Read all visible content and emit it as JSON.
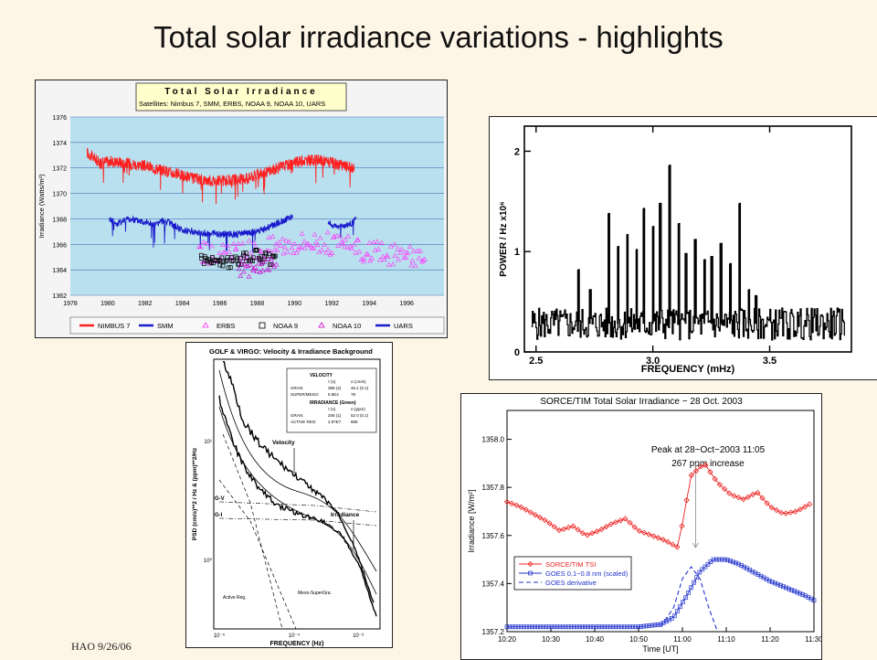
{
  "slide": {
    "title": "Total solar irradiance variations - highlights",
    "footer": "HAO 9/26/06"
  },
  "chart_data": [
    {
      "id": "tsi-composite",
      "type": "line",
      "title": "Total Solar Irradiance",
      "subtitle": "Satellites: Nimbus 7, SMM, ERBS, NOAA 9, NOAA 10, UARS",
      "ylabel": "Irradiance (Watts/m²)",
      "xlabel": "",
      "xlim": [
        1978,
        1998
      ],
      "ylim": [
        1362,
        1376
      ],
      "x_ticks": [
        "1978",
        "1980",
        "1982",
        "1984",
        "1986",
        "1988",
        "1990",
        "1992",
        "1994",
        "1996"
      ],
      "y_ticks": [
        "1362",
        "1364",
        "1366",
        "1368",
        "1370",
        "1372",
        "1374",
        "1376"
      ],
      "grid": true,
      "legend_position": "bottom",
      "colors": {
        "nimbus7": "#ff2020",
        "smm": "#1a1acc",
        "erbs": "#ff33ff",
        "noaa9": "#000000",
        "noaa10": "#cc00cc",
        "uars": "#1a1acc"
      },
      "series": [
        {
          "name": "NIMBUS 7",
          "x": [
            1978.9,
            1979.5,
            1980.5,
            1981.5,
            1982.5,
            1983.5,
            1984.5,
            1985.5,
            1986.5,
            1987.5,
            1988.5,
            1989.5,
            1990.5,
            1991.5,
            1992.5,
            1993.2
          ],
          "y": [
            1373.2,
            1372.5,
            1372.5,
            1372.3,
            1372.0,
            1371.6,
            1371.2,
            1371.0,
            1371.0,
            1371.2,
            1371.7,
            1372.2,
            1372.6,
            1372.6,
            1372.2,
            1372.0
          ]
        },
        {
          "name": "SMM",
          "x": [
            1980.1,
            1980.5,
            1981.0,
            1981.5,
            1982.0,
            1982.5,
            1983.0,
            1983.5,
            1984.0,
            1985.0,
            1986.0,
            1987.0,
            1988.0,
            1989.0,
            1989.9
          ],
          "y": [
            1368.0,
            1367.6,
            1368.0,
            1367.9,
            1367.8,
            1367.5,
            1367.9,
            1367.5,
            1367.1,
            1366.9,
            1366.8,
            1366.8,
            1367.0,
            1367.6,
            1368.2
          ]
        },
        {
          "name": "ERBS",
          "x": [
            1984.9,
            1986.0,
            1987.0,
            1988.0,
            1989.0,
            1990.0,
            1991.0,
            1992.0,
            1993.0,
            1994.0,
            1995.0,
            1996.0,
            1997.0
          ],
          "y": [
            1365.4,
            1365.2,
            1365.3,
            1365.6,
            1366.0,
            1366.2,
            1366.3,
            1366.0,
            1365.7,
            1365.4,
            1365.2,
            1365.1,
            1365.2
          ]
        },
        {
          "name": "NOAA 9",
          "x": [
            1985.0,
            1985.5,
            1986.0,
            1986.5,
            1987.0,
            1987.5,
            1988.0,
            1988.5,
            1989.0
          ],
          "y": [
            1365.0,
            1364.7,
            1364.5,
            1364.6,
            1364.8,
            1365.0,
            1365.2,
            1364.9,
            1364.7
          ]
        },
        {
          "name": "NOAA 10",
          "x": [
            1987.0,
            1987.5,
            1988.0,
            1988.5,
            1989.0
          ],
          "y": [
            1364.0,
            1363.9,
            1364.2,
            1364.4,
            1364.6
          ]
        },
        {
          "name": "UARS",
          "x": [
            1991.8,
            1992.0,
            1992.5,
            1993.0,
            1993.3
          ],
          "y": [
            1367.8,
            1367.5,
            1367.4,
            1367.6,
            1368.0
          ]
        }
      ]
    },
    {
      "id": "power-spectrum",
      "type": "line",
      "xlabel": "FREQUENCY (mHz)",
      "ylabel": "POWER / Hz x10⁶",
      "xlim": [
        2.45,
        3.85
      ],
      "ylim": [
        0,
        2.25
      ],
      "x_ticks": [
        "2.5",
        "3.0",
        "3.5"
      ],
      "y_ticks": [
        "0",
        "1",
        "2"
      ],
      "peaks": [
        {
          "x": 2.68,
          "y": 0.82
        },
        {
          "x": 2.73,
          "y": 0.62
        },
        {
          "x": 2.81,
          "y": 1.38
        },
        {
          "x": 2.85,
          "y": 1.05
        },
        {
          "x": 2.89,
          "y": 1.17
        },
        {
          "x": 2.93,
          "y": 1.02
        },
        {
          "x": 2.96,
          "y": 1.43
        },
        {
          "x": 3.0,
          "y": 1.25
        },
        {
          "x": 3.03,
          "y": 1.48
        },
        {
          "x": 3.07,
          "y": 1.86
        },
        {
          "x": 3.11,
          "y": 1.28
        },
        {
          "x": 3.14,
          "y": 0.98
        },
        {
          "x": 3.18,
          "y": 1.12
        },
        {
          "x": 3.22,
          "y": 0.92
        },
        {
          "x": 3.25,
          "y": 0.95
        },
        {
          "x": 3.29,
          "y": 1.08
        },
        {
          "x": 3.33,
          "y": 0.88
        },
        {
          "x": 3.37,
          "y": 1.48
        },
        {
          "x": 3.41,
          "y": 0.62
        },
        {
          "x": 3.44,
          "y": 0.56
        }
      ],
      "noise_level": 0.28
    },
    {
      "id": "golf-virgo-psd",
      "type": "line",
      "title": "GOLF & VIRGO: Velocity & Irradiance Background",
      "xlabel": "FREQUENCY (Hz)",
      "ylabel": "PSD (cm/s)**2 / Hz & (ppm)**2/Hz",
      "x_ticks": [
        "10⁻⁵",
        "10⁻⁴",
        "10⁻³"
      ],
      "y_ticks": [
        "10¹",
        "10⁰"
      ],
      "annotations": [
        "Velocity",
        "Irradiance",
        "G-V",
        "G-I",
        "Active Reg.",
        "Meso-SuperGra."
      ],
      "table": {
        "sections": [
          {
            "heading": "VELOCITY",
            "columns": [
              "τ (s)",
              "σ (cm/s)"
            ],
            "rows": [
              [
                "GRAN:",
                "389 (4)",
                "46.1 (0.1)"
              ],
              [
                "SUPER/MESO:",
                "5.6E4",
                "78"
              ]
            ]
          },
          {
            "heading": "IRRADIANCE (Green)",
            "columns": [
              "τ (s)",
              "σ (ppm)"
            ],
            "rows": [
              [
                "GRAN:",
                "206 (1)",
                "52 0 (0.1)"
              ],
              [
                "ACTIVE REG:",
                "2.87E7",
                "865"
              ]
            ]
          }
        ]
      }
    },
    {
      "id": "sorce-tim",
      "type": "line",
      "title": "SORCE/TIM Total Solar Irradiance − 28 Oct. 2003",
      "xlabel": "Time [UT]",
      "ylabel": "Irradiance [W/m²]",
      "annotation": [
        "Peak at 28−Oct−2003 11:05",
        "267 ppm increase"
      ],
      "x_ticks": [
        "10:20",
        "10:30",
        "10:40",
        "10:50",
        "11:00",
        "11:10",
        "11:20",
        "11:30"
      ],
      "y_ticks": [
        "1357.2",
        "1357.4",
        "1357.6",
        "1357.8",
        "1358.0"
      ],
      "xlim": [
        620,
        690
      ],
      "ylim": [
        1357.2,
        1358.12
      ],
      "colors": {
        "tsi": "#ee2222",
        "goes": "#2233cc",
        "derivative": "#2233cc"
      },
      "legend_position": "bottom-left",
      "series": [
        {
          "name": "SORCE/TIM TSI",
          "x": [
            620,
            623,
            626,
            629,
            632,
            635,
            638,
            641,
            644,
            647,
            650,
            653,
            656,
            659,
            662,
            665,
            668,
            671,
            674,
            677,
            680,
            683,
            686,
            689
          ],
          "y": [
            1357.74,
            1357.72,
            1357.69,
            1357.66,
            1357.62,
            1357.64,
            1357.6,
            1357.62,
            1357.65,
            1357.67,
            1357.62,
            1357.6,
            1357.58,
            1357.55,
            1357.85,
            1357.9,
            1357.82,
            1357.77,
            1357.75,
            1357.78,
            1357.72,
            1357.69,
            1357.7,
            1357.73
          ]
        },
        {
          "name": "GOES 0.1−0.8 nm (scaled)",
          "x": [
            620,
            630,
            640,
            650,
            655,
            658,
            661,
            664,
            667,
            670,
            673,
            676,
            680,
            684,
            688,
            690
          ],
          "y": [
            1357.22,
            1357.22,
            1357.22,
            1357.22,
            1357.23,
            1357.26,
            1357.35,
            1357.45,
            1357.5,
            1357.5,
            1357.48,
            1357.45,
            1357.41,
            1357.38,
            1357.35,
            1357.33
          ]
        },
        {
          "name": "GOES derivative",
          "x": [
            655,
            658,
            660,
            662,
            664,
            666,
            668
          ],
          "y": [
            1357.22,
            1357.3,
            1357.42,
            1357.47,
            1357.42,
            1357.3,
            1357.2
          ]
        }
      ]
    }
  ]
}
